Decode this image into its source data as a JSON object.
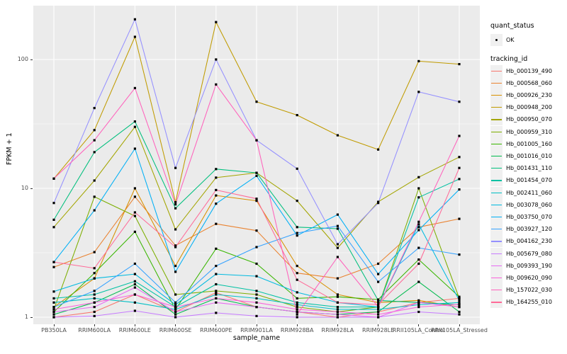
{
  "chart_data": {
    "type": "line",
    "title": "",
    "xlabel": "sample_name",
    "ylabel": "FPKM + 1",
    "y_scale": "log10",
    "y_major_ticks": [
      1,
      10,
      100
    ],
    "y_minor_gridlines": [
      3.162,
      31.62
    ],
    "ylim": [
      0.9,
      236
    ],
    "grid": "on",
    "legend_position": "right",
    "categories": [
      "PB350LA",
      "RRIM600LA",
      "RRIM600LE",
      "RRIM600SE",
      "RRIM600PE",
      "RRIM901LA",
      "RRIM928BA",
      "RRIM928LA",
      "RRIM928LE",
      "RRII105LA_Control",
      "RRII105LA_Stressed"
    ],
    "legend": {
      "quant_status_title": "quant_status",
      "quant_status_items": [
        {
          "label": "OK",
          "marker": "black-point"
        }
      ],
      "tracking_id_title": "tracking_id"
    },
    "point_marker": "small-black-square",
    "point_color": "#000000",
    "series": [
      {
        "name": "Hb_000139_490",
        "color": "#F8766D",
        "values": [
          1.0,
          1.1,
          1.5,
          1.1,
          1.55,
          1.2,
          1.1,
          1.0,
          1.1,
          1.3,
          1.4
        ]
      },
      {
        "name": "Hb_000568_060",
        "color": "#EA8331",
        "values": [
          2.45,
          3.2,
          8.6,
          3.6,
          5.3,
          4.7,
          2.2,
          2.0,
          2.6,
          5.0,
          5.8
        ]
      },
      {
        "name": "Hb_000926_230",
        "color": "#D89000",
        "values": [
          1.2,
          2.0,
          10.0,
          2.5,
          8.8,
          8.0,
          2.5,
          1.5,
          1.3,
          1.35,
          1.2
        ]
      },
      {
        "name": "Hb_000948_200",
        "color": "#C09B00",
        "values": [
          11.9,
          28.3,
          150,
          7.8,
          195,
          47,
          37,
          25.8,
          20,
          97,
          92
        ]
      },
      {
        "name": "Hb_000950_070",
        "color": "#A3A500",
        "values": [
          5.0,
          11.5,
          30,
          4.8,
          12.1,
          13.2,
          8.0,
          3.45,
          7.85,
          12.2,
          17.5
        ]
      },
      {
        "name": "Hb_000959_310",
        "color": "#7CAE00",
        "values": [
          1.15,
          8.6,
          6.1,
          1.5,
          1.6,
          1.5,
          1.2,
          1.1,
          1.2,
          10.0,
          1.4
        ]
      },
      {
        "name": "Hb_001005_160",
        "color": "#39B600",
        "values": [
          1.1,
          2.2,
          4.6,
          1.15,
          3.4,
          2.6,
          1.4,
          1.44,
          1.37,
          2.8,
          1.44
        ]
      },
      {
        "name": "Hb_001016_010",
        "color": "#00BB4E",
        "values": [
          1.05,
          1.3,
          1.8,
          1.05,
          1.4,
          1.2,
          1.1,
          1.05,
          1.1,
          1.88,
          1.1
        ]
      },
      {
        "name": "Hb_001431_110",
        "color": "#00BF7D",
        "values": [
          5.7,
          19.1,
          33,
          7.0,
          14.1,
          13.2,
          5.0,
          4.86,
          1.35,
          1.3,
          1.25
        ]
      },
      {
        "name": "Hb_001454_070",
        "color": "#00C1A3",
        "values": [
          1.4,
          1.5,
          1.9,
          1.2,
          1.8,
          1.6,
          1.3,
          1.2,
          1.2,
          8.5,
          11.8
        ]
      },
      {
        "name": "Hb_002411_060",
        "color": "#00BFC4",
        "values": [
          1.3,
          1.4,
          1.3,
          1.15,
          1.5,
          1.4,
          1.25,
          1.15,
          1.15,
          1.25,
          1.3
        ]
      },
      {
        "name": "Hb_003078_060",
        "color": "#00BAE0",
        "values": [
          1.58,
          2.0,
          2.16,
          1.25,
          2.16,
          2.08,
          1.56,
          1.3,
          1.2,
          5.25,
          1.35
        ]
      },
      {
        "name": "Hb_003750_070",
        "color": "#00B0F6",
        "values": [
          2.68,
          6.75,
          20.3,
          2.25,
          7.6,
          12.5,
          4.3,
          6.25,
          2.16,
          4.74,
          9.8
        ]
      },
      {
        "name": "Hb_003927_120",
        "color": "#35A2FF",
        "values": [
          1.2,
          1.6,
          2.6,
          1.3,
          2.5,
          3.5,
          4.5,
          5.1,
          1.88,
          3.45,
          3.06
        ]
      },
      {
        "name": "Hb_004162_230",
        "color": "#9590FF",
        "values": [
          7.7,
          42,
          205,
          14.4,
          100,
          23.6,
          14.2,
          3.68,
          7.7,
          56,
          47
        ]
      },
      {
        "name": "Hb_005679_080",
        "color": "#C77CFF",
        "values": [
          1.0,
          1.02,
          1.12,
          1.0,
          1.08,
          1.02,
          1.0,
          1.0,
          1.0,
          1.1,
          1.05
        ]
      },
      {
        "name": "Hb_009393_190",
        "color": "#E76BF3",
        "values": [
          1.1,
          1.2,
          1.7,
          1.1,
          1.3,
          1.2,
          1.1,
          1.05,
          1.0,
          1.3,
          1.2
        ]
      },
      {
        "name": "Hb_009620_090",
        "color": "#FA62DB",
        "values": [
          1.15,
          1.3,
          1.5,
          1.2,
          1.4,
          1.3,
          1.15,
          1.1,
          1.05,
          1.2,
          1.26
        ]
      },
      {
        "name": "Hb_157022_030",
        "color": "#FF62BC",
        "values": [
          11.9,
          23.6,
          60,
          7.5,
          64,
          23.6,
          1.05,
          2.93,
          1.2,
          5.5,
          25.5
        ]
      },
      {
        "name": "Hb_164255_010",
        "color": "#FF6A98",
        "values": [
          2.68,
          2.4,
          6.5,
          3.5,
          9.7,
          8.3,
          1.95,
          1.3,
          1.25,
          2.6,
          14.4
        ]
      }
    ]
  },
  "style": {
    "panel_bg": "#EBEBEB",
    "grid_color": "#FFFFFF",
    "tick_color": "#333333",
    "tick_label_color": "#4D4D4D",
    "legend_key_bg": "#F0F0F0"
  }
}
